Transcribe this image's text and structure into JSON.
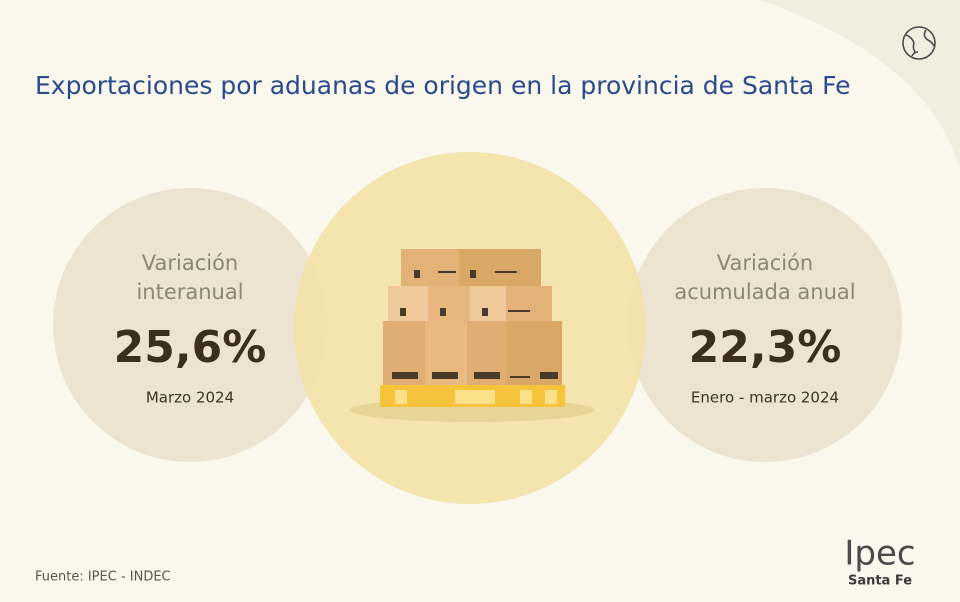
{
  "header": {
    "title": "Exportaciones por aduanas de origen en la provincia de Santa Fe"
  },
  "cards": [
    {
      "label_lines": [
        "Variación",
        "interanual"
      ],
      "value": "25,6%",
      "period": "Marzo 2024"
    },
    {
      "label_lines": [
        "Variación",
        "acumulada anual"
      ],
      "value": "22,3%",
      "period": "Enero - marzo 2024"
    }
  ],
  "footer": {
    "source": "Fuente: IPEC - INDEC",
    "logo": "Ipec",
    "logo_subtitle": "Santa Fe"
  }
}
